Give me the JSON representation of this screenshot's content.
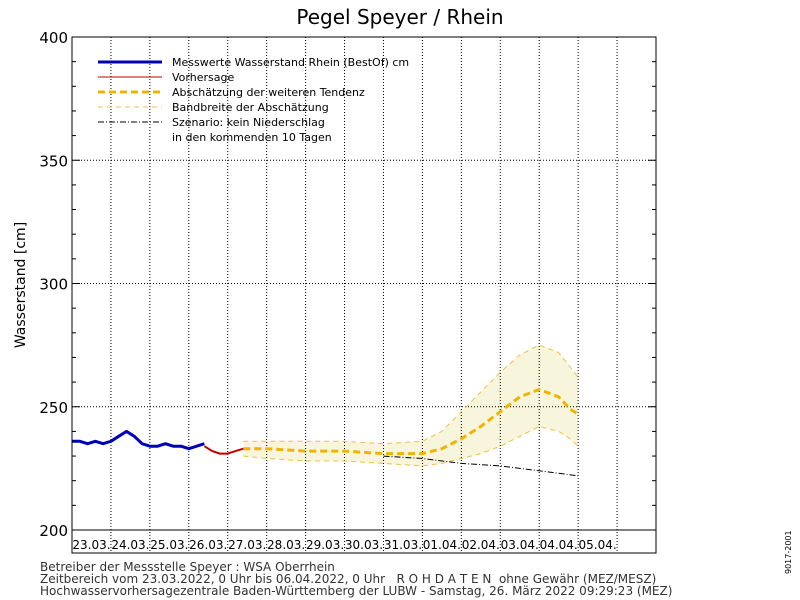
{
  "chart_data": {
    "type": "line",
    "title": "Pegel Speyer / Rhein",
    "ylabel": "Wasserstand [cm]",
    "xlabel": "",
    "ylim": [
      200,
      400
    ],
    "xlim": [
      0,
      15
    ],
    "yticks": [
      200,
      250,
      300,
      350,
      400
    ],
    "grid": true,
    "legend_position": "top-left",
    "categories": [
      "23.03.",
      "24.03.",
      "25.03.",
      "26.03.",
      "27.03.",
      "28.03.",
      "29.03.",
      "30.03.",
      "31.03.",
      "01.04.",
      "02.04.",
      "03.04.",
      "04.04.",
      "05.04."
    ],
    "series": [
      {
        "name": "Messwerte Wasserstand Rhein (BestOf)  cm",
        "style": "measured",
        "color": "#0000b4",
        "x": [
          0,
          0.2,
          0.4,
          0.6,
          0.8,
          1.0,
          1.2,
          1.4,
          1.6,
          1.8,
          2.0,
          2.2,
          2.4,
          2.6,
          2.8,
          3.0,
          3.2,
          3.4
        ],
        "y": [
          236,
          236,
          235,
          236,
          235,
          236,
          238,
          240,
          238,
          235,
          234,
          234,
          235,
          234,
          234,
          233,
          234,
          235
        ]
      },
      {
        "name": "Vorhersage",
        "style": "forecast",
        "color": "#c00000",
        "x": [
          3.4,
          3.6,
          3.8,
          4.0,
          4.2,
          4.4
        ],
        "y": [
          234,
          232,
          231,
          231,
          232,
          233
        ]
      },
      {
        "name": "Abschätzung der weiteren Tendenz",
        "style": "tendency",
        "color": "#f0b400",
        "x": [
          4.4,
          5,
          6,
          7,
          8,
          9,
          9.5,
          10,
          10.5,
          11,
          11.5,
          12,
          12.5,
          12.8,
          13
        ],
        "y": [
          233,
          233,
          232,
          232,
          231,
          231,
          233,
          237,
          242,
          248,
          254,
          257,
          254,
          249,
          247
        ]
      },
      {
        "name": "Bandbreite der Abschätzung",
        "style": "band",
        "color": "#f0c040",
        "fill": "#f7f5dc",
        "x": [
          4.4,
          5,
          6,
          7,
          8,
          9,
          9.5,
          10,
          10.5,
          11,
          11.5,
          12,
          12.5,
          12.8,
          13
        ],
        "upper": [
          236,
          236,
          236,
          236,
          235,
          236,
          240,
          248,
          256,
          264,
          271,
          275,
          272,
          266,
          262
        ],
        "lower": [
          230,
          229,
          228,
          228,
          227,
          226,
          227,
          229,
          231,
          234,
          238,
          242,
          240,
          237,
          234
        ]
      },
      {
        "name": "Szenario: kein Niederschlag",
        "name_line2": "in den kommenden 10 Tagen",
        "style": "scenario",
        "color": "#000000",
        "x": [
          8,
          9,
          10,
          11,
          12,
          13
        ],
        "y": [
          230,
          229,
          227,
          226,
          224,
          222
        ]
      }
    ]
  },
  "footer": {
    "line1": "Betreiber der Messstelle Speyer : WSA Oberrhein",
    "line2": "Zeitbereich vom 23.03.2022, 0 Uhr bis 06.04.2022, 0 Uhr   R O H D A T E N  ohne Gewähr (MEZ/MESZ)",
    "line3": "Hochwasservorhersagezentrale Baden-Württemberg der LUBW - Samstag, 26. März 2022 09:29:23 (MEZ)"
  },
  "side_code": "9017-2001"
}
